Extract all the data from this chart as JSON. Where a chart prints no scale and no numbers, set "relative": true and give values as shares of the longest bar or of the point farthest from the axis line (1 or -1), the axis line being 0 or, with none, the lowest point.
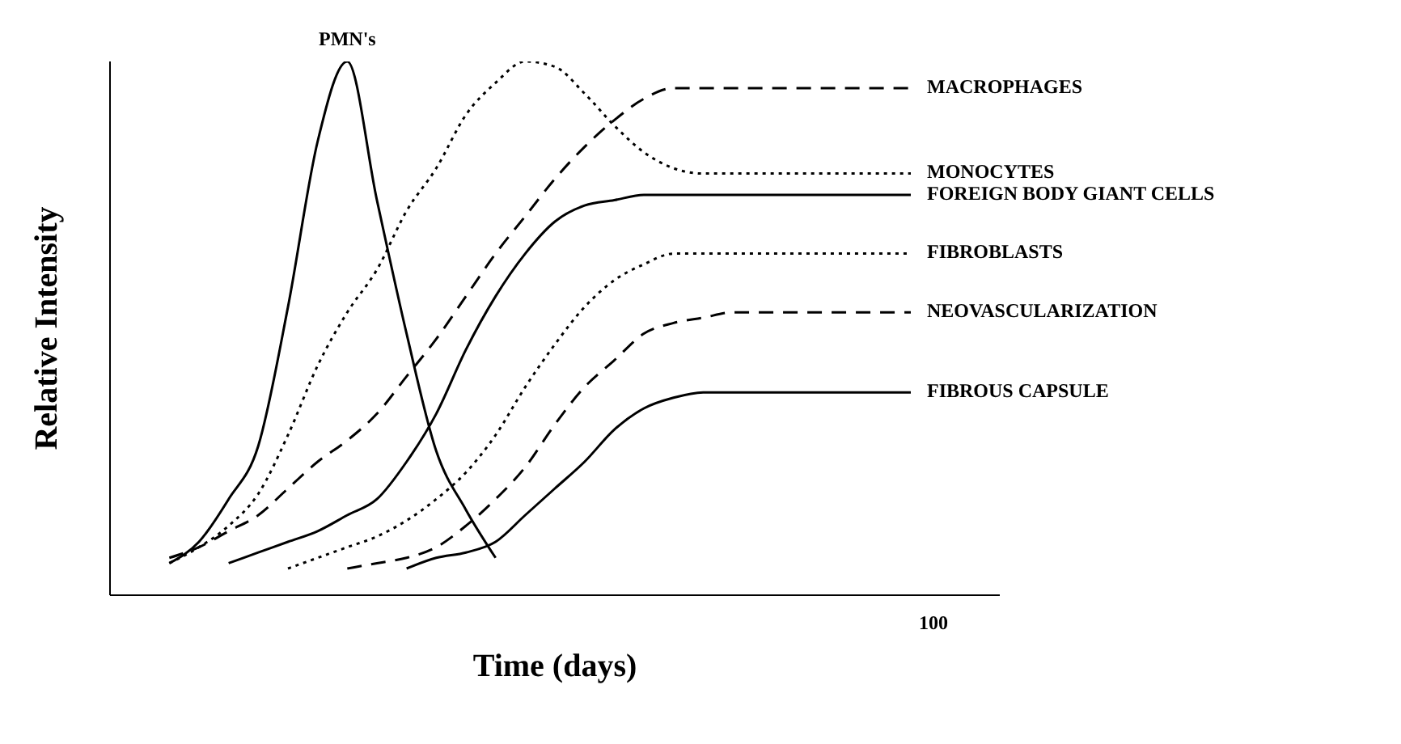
{
  "chart_data": {
    "type": "line",
    "relative": true,
    "xlabel": "Time (days)",
    "ylabel": "Relative Intensity",
    "annotations": [
      "100"
    ],
    "marker": "none",
    "categories": [
      null,
      null,
      null,
      null,
      null,
      null,
      null,
      null,
      null,
      null,
      null,
      null,
      null,
      null,
      null,
      null,
      null,
      null,
      null,
      null,
      null,
      null,
      null,
      null,
      null,
      null,
      null,
      null,
      null,
      null,
      null
    ],
    "series": [
      {
        "name": "PMN's",
        "color": "#000000",
        "line_style": "solid",
        "values": [
          null,
          null,
          0.06,
          0.1,
          0.18,
          0.28,
          0.54,
          0.85,
          1.0,
          0.74,
          0.49,
          0.27,
          0.16,
          0.07,
          null,
          null,
          null,
          null,
          null,
          null,
          null,
          null,
          null,
          null,
          null,
          null,
          null,
          null,
          null,
          null,
          null
        ]
      },
      {
        "name": "MONOCYTES",
        "color": "#000000",
        "line_style": "dotted",
        "values": [
          null,
          null,
          0.06,
          0.09,
          0.13,
          0.19,
          0.3,
          0.43,
          0.53,
          0.61,
          0.72,
          0.8,
          0.9,
          0.96,
          1.0,
          0.99,
          0.94,
          0.88,
          0.83,
          0.8,
          0.79,
          0.79,
          0.79,
          0.79,
          0.79,
          0.79,
          0.79,
          0.79,
          null,
          null,
          null
        ]
      },
      {
        "name": "MACROPHAGES",
        "color": "#000000",
        "line_style": "dashed",
        "values": [
          null,
          null,
          0.07,
          0.09,
          0.12,
          0.15,
          0.2,
          0.25,
          0.29,
          0.34,
          0.41,
          0.48,
          0.56,
          0.64,
          0.71,
          0.78,
          0.84,
          0.89,
          0.93,
          0.95,
          0.95,
          0.95,
          0.95,
          0.95,
          0.95,
          0.95,
          0.95,
          0.95,
          null,
          null,
          null
        ]
      },
      {
        "name": "FOREIGN BODY GIANT CELLS",
        "color": "#000000",
        "line_style": "solid",
        "values": [
          null,
          null,
          null,
          null,
          0.06,
          0.08,
          0.1,
          0.12,
          0.15,
          0.18,
          0.25,
          0.34,
          0.46,
          0.56,
          0.64,
          0.7,
          0.73,
          0.74,
          0.75,
          0.75,
          0.75,
          0.75,
          0.75,
          0.75,
          0.75,
          0.75,
          0.75,
          0.75,
          null,
          null,
          null
        ]
      },
      {
        "name": "FIBROBLASTS",
        "color": "#000000",
        "line_style": "dotted",
        "values": [
          null,
          null,
          null,
          null,
          null,
          null,
          0.05,
          0.07,
          0.09,
          0.11,
          0.14,
          0.18,
          0.23,
          0.3,
          0.39,
          0.47,
          0.54,
          0.59,
          0.62,
          0.64,
          0.64,
          0.64,
          0.64,
          0.64,
          0.64,
          0.64,
          0.64,
          0.64,
          null,
          null,
          null
        ]
      },
      {
        "name": "NEOVASCULARIZATION",
        "color": "#000000",
        "line_style": "dashed",
        "values": [
          null,
          null,
          null,
          null,
          null,
          null,
          null,
          null,
          0.05,
          0.06,
          0.07,
          0.09,
          0.13,
          0.18,
          0.24,
          0.32,
          0.39,
          0.44,
          0.49,
          0.51,
          0.52,
          0.53,
          0.53,
          0.53,
          0.53,
          0.53,
          0.53,
          0.53,
          null,
          null,
          null
        ]
      },
      {
        "name": "FIBROUS CAPSULE",
        "color": "#000000",
        "line_style": "solid",
        "values": [
          null,
          null,
          null,
          null,
          null,
          null,
          null,
          null,
          null,
          null,
          0.05,
          0.07,
          0.08,
          0.1,
          0.15,
          0.2,
          0.25,
          0.31,
          0.35,
          0.37,
          0.38,
          0.38,
          0.38,
          0.38,
          0.38,
          0.38,
          0.38,
          0.38,
          null,
          null,
          null
        ]
      }
    ]
  }
}
